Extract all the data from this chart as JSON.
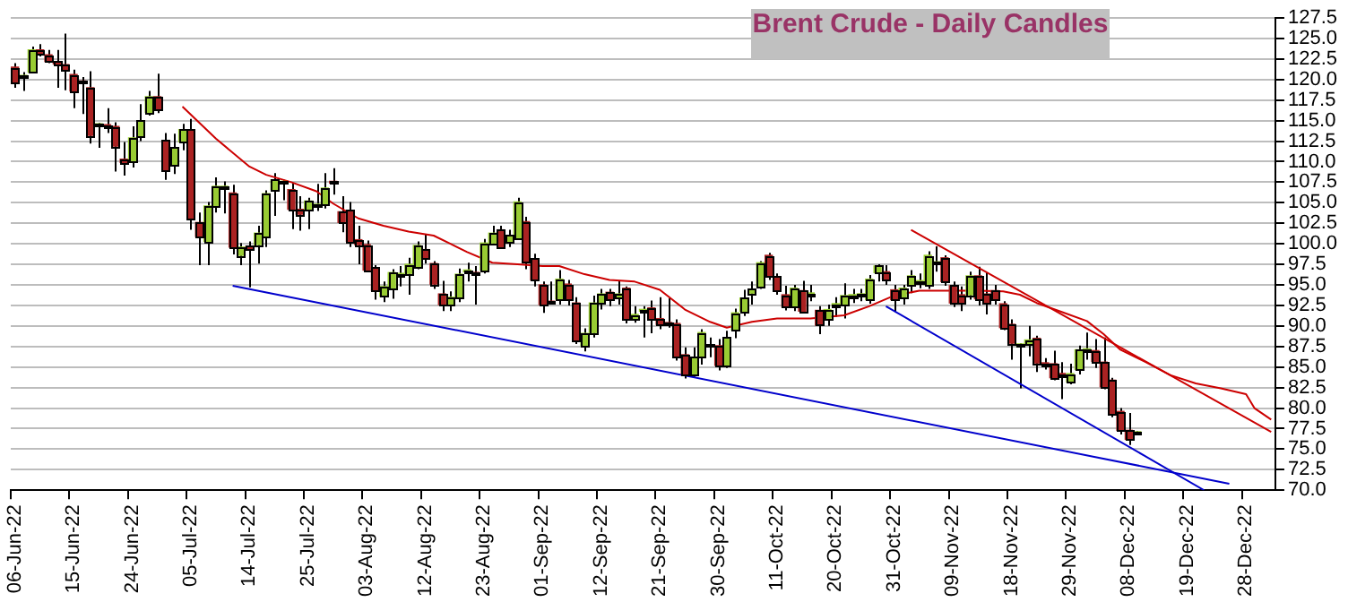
{
  "chart_data": {
    "type": "candlestick",
    "title": "Brent Crude - Daily Candles",
    "categories": [
      "06-Jun-22",
      null,
      null,
      null,
      null,
      null,
      null,
      "15-Jun-22",
      null,
      null,
      null,
      null,
      null,
      null,
      "24-Jun-22",
      null,
      null,
      null,
      null,
      null,
      null,
      "05-Jul-22",
      null,
      null,
      null,
      null,
      null,
      null,
      "14-Jul-22",
      null,
      null,
      null,
      null,
      null,
      null,
      "25-Jul-22",
      null,
      null,
      null,
      null,
      null,
      null,
      "03-Aug-22",
      null,
      null,
      null,
      null,
      null,
      null,
      "12-Aug-22",
      null,
      null,
      null,
      null,
      null,
      null,
      "23-Aug-22",
      null,
      null,
      null,
      null,
      null,
      null,
      "01-Sep-22",
      null,
      null,
      null,
      null,
      null,
      null,
      "12-Sep-22",
      null,
      null,
      null,
      null,
      null,
      null,
      "21-Sep-22",
      null,
      null,
      null,
      null,
      null,
      null,
      "30-Sep-22",
      null,
      null,
      null,
      null,
      null,
      null,
      "11-Oct-22",
      null,
      null,
      null,
      null,
      null,
      null,
      "20-Oct-22",
      null,
      null,
      null,
      null,
      null,
      null,
      "31-Oct-22",
      null,
      null,
      null,
      null,
      null,
      null,
      "09-Nov-22",
      null,
      null,
      null,
      null,
      null,
      null,
      "18-Nov-22",
      null,
      null,
      null,
      null,
      null,
      null,
      "29-Nov-22",
      null,
      null,
      null,
      null,
      null,
      null,
      "08-Dec-22",
      null,
      null,
      null,
      null,
      null,
      null,
      "19-Dec-22",
      null,
      null,
      null,
      null,
      null,
      null,
      "28-Dec-22",
      null,
      null,
      null
    ],
    "ohlc": [
      [
        121.5,
        122.0,
        119.0,
        119.7
      ],
      [
        120.2,
        120.9,
        118.6,
        120.5
      ],
      [
        120.9,
        124.0,
        120.8,
        123.6
      ],
      [
        123.6,
        124.3,
        122.8,
        123.1
      ],
      [
        123.0,
        123.6,
        122.0,
        122.2
      ],
      [
        122.2,
        123.6,
        119.0,
        121.9
      ],
      [
        121.8,
        125.6,
        118.7,
        121.2
      ],
      [
        120.6,
        121.2,
        116.5,
        118.6
      ],
      [
        119.8,
        120.3,
        115.8,
        119.6
      ],
      [
        119.0,
        121.0,
        112.2,
        113.2
      ],
      [
        114.4,
        114.7,
        111.7,
        114.6
      ],
      [
        114.5,
        116.5,
        113.5,
        114.3
      ],
      [
        114.3,
        114.8,
        108.8,
        111.9
      ],
      [
        110.3,
        112.4,
        108.3,
        109.9
      ],
      [
        110.1,
        114.3,
        109.3,
        112.9
      ],
      [
        113.1,
        117.0,
        112.5,
        115.0
      ],
      [
        116.0,
        118.6,
        115.6,
        117.9
      ],
      [
        117.9,
        120.7,
        115.9,
        116.4
      ],
      [
        112.6,
        113.5,
        107.8,
        109.0
      ],
      [
        109.6,
        113.4,
        108.5,
        111.7
      ],
      [
        112.4,
        114.6,
        111.4,
        113.9
      ],
      [
        113.9,
        115.2,
        101.7,
        103.0
      ],
      [
        102.6,
        103.8,
        97.4,
        100.9
      ],
      [
        100.3,
        105.1,
        97.4,
        104.6
      ],
      [
        104.6,
        108.1,
        103.8,
        107.0
      ],
      [
        106.8,
        107.6,
        103.7,
        107.0
      ],
      [
        106.2,
        107.2,
        98.7,
        99.6
      ],
      [
        98.6,
        100.1,
        97.4,
        99.6
      ],
      [
        99.7,
        100.3,
        94.7,
        99.4
      ],
      [
        99.9,
        102.2,
        97.6,
        101.3
      ],
      [
        100.9,
        106.5,
        99.6,
        106.1
      ],
      [
        106.6,
        108.6,
        103.4,
        107.8
      ],
      [
        107.4,
        107.8,
        105.3,
        107.6
      ],
      [
        106.6,
        107.4,
        101.8,
        104.2
      ],
      [
        104.2,
        105.8,
        101.6,
        103.6
      ],
      [
        104.2,
        105.6,
        101.8,
        105.2
      ],
      [
        104.6,
        107.3,
        104.0,
        104.8
      ],
      [
        104.9,
        108.6,
        104.3,
        106.8
      ],
      [
        107.6,
        109.2,
        106.0,
        107.4
      ],
      [
        103.9,
        105.8,
        101.4,
        102.6
      ],
      [
        104.1,
        105.1,
        99.6,
        100.3
      ],
      [
        100.5,
        102.2,
        97.5,
        99.9
      ],
      [
        99.9,
        100.4,
        96.6,
        96.8
      ],
      [
        97.1,
        97.4,
        93.2,
        94.3
      ],
      [
        93.6,
        95.4,
        92.9,
        94.8
      ],
      [
        94.5,
        96.9,
        93.3,
        96.5
      ],
      [
        96.1,
        97.3,
        94.8,
        96.4
      ],
      [
        96.4,
        98.3,
        93.8,
        97.5
      ],
      [
        97.1,
        100.3,
        96.9,
        99.8
      ],
      [
        99.3,
        101.2,
        97.6,
        98.3
      ],
      [
        97.6,
        97.9,
        94.5,
        95.1
      ],
      [
        93.9,
        95.5,
        91.8,
        92.6
      ],
      [
        92.6,
        94.2,
        91.8,
        93.5
      ],
      [
        93.5,
        97.0,
        92.9,
        96.3
      ],
      [
        96.6,
        97.7,
        95.4,
        96.8
      ],
      [
        96.5,
        97.3,
        92.6,
        96.3
      ],
      [
        96.8,
        100.6,
        96.4,
        100.1
      ],
      [
        100.1,
        102.2,
        99.8,
        101.3
      ],
      [
        101.7,
        102.2,
        99.5,
        99.6
      ],
      [
        100.3,
        101.7,
        99.6,
        101.0
      ],
      [
        100.7,
        105.6,
        100.5,
        105.1
      ],
      [
        102.7,
        103.3,
        96.9,
        97.8
      ],
      [
        98.2,
        98.8,
        94.8,
        95.6
      ],
      [
        95.0,
        95.4,
        91.6,
        92.6
      ],
      [
        93.0,
        95.4,
        92.6,
        92.8
      ],
      [
        93.3,
        96.8,
        92.6,
        95.7
      ],
      [
        95.1,
        95.6,
        92.5,
        93.2
      ],
      [
        92.8,
        93.5,
        87.8,
        88.3
      ],
      [
        87.6,
        89.7,
        86.9,
        89.1
      ],
      [
        89.2,
        93.7,
        88.6,
        92.8
      ],
      [
        92.8,
        94.5,
        92.0,
        93.9
      ],
      [
        94.1,
        94.5,
        92.4,
        93.3
      ],
      [
        93.4,
        95.5,
        92.6,
        93.9
      ],
      [
        94.6,
        94.8,
        90.3,
        90.9
      ],
      [
        90.9,
        92.4,
        90.4,
        91.4
      ],
      [
        91.8,
        92.4,
        88.6,
        92.0
      ],
      [
        92.2,
        93.1,
        89.1,
        90.8
      ],
      [
        90.9,
        93.5,
        89.6,
        90.2
      ],
      [
        90.4,
        93.4,
        89.8,
        90.2
      ],
      [
        90.3,
        90.8,
        85.8,
        86.2
      ],
      [
        86.5,
        87.4,
        83.6,
        84.1
      ],
      [
        84.1,
        87.4,
        83.8,
        86.2
      ],
      [
        86.2,
        89.6,
        85.3,
        89.2
      ],
      [
        87.7,
        88.6,
        86.2,
        87.5
      ],
      [
        87.6,
        88.4,
        84.6,
        85.2
      ],
      [
        85.2,
        89.4,
        84.9,
        88.6
      ],
      [
        89.5,
        92.1,
        88.5,
        91.6
      ],
      [
        91.8,
        94.4,
        91.2,
        93.4
      ],
      [
        94.0,
        95.4,
        92.6,
        94.5
      ],
      [
        94.8,
        97.9,
        94.5,
        97.7
      ],
      [
        98.6,
        98.9,
        95.6,
        96.0
      ],
      [
        96.0,
        96.4,
        93.8,
        94.3
      ],
      [
        93.8,
        94.9,
        91.9,
        92.4
      ],
      [
        92.3,
        95.0,
        91.8,
        94.6
      ],
      [
        94.3,
        95.5,
        91.5,
        91.8
      ],
      [
        93.8,
        95.0,
        93.0,
        94.0
      ],
      [
        91.9,
        92.4,
        89.0,
        90.1
      ],
      [
        90.8,
        92.6,
        90.0,
        92.0
      ],
      [
        92.5,
        93.5,
        91.1,
        92.7
      ],
      [
        92.6,
        95.2,
        90.9,
        93.7
      ],
      [
        93.6,
        94.5,
        92.8,
        93.8
      ],
      [
        93.7,
        94.5,
        93.0,
        93.9
      ],
      [
        93.2,
        96.2,
        92.7,
        95.7
      ],
      [
        96.5,
        97.5,
        95.4,
        97.3
      ],
      [
        96.6,
        97.4,
        95.0,
        95.7
      ],
      [
        94.4,
        95.0,
        91.7,
        93.2
      ],
      [
        93.5,
        95.0,
        92.6,
        94.6
      ],
      [
        95.0,
        96.8,
        94.0,
        96.1
      ],
      [
        95.3,
        96.4,
        94.6,
        95.5
      ],
      [
        95.0,
        99.1,
        94.5,
        98.6
      ],
      [
        97.6,
        99.7,
        96.6,
        97.8
      ],
      [
        98.3,
        98.6,
        94.9,
        95.4
      ],
      [
        94.9,
        95.4,
        92.3,
        92.8
      ],
      [
        93.8,
        94.8,
        91.8,
        92.8
      ],
      [
        93.8,
        96.6,
        93.2,
        96.1
      ],
      [
        96.1,
        97.2,
        92.5,
        93.3
      ],
      [
        93.9,
        96.5,
        91.4,
        92.8
      ],
      [
        94.3,
        95.0,
        92.6,
        93.2
      ],
      [
        92.7,
        93.0,
        89.5,
        89.8
      ],
      [
        90.2,
        90.8,
        85.9,
        87.9
      ],
      [
        87.6,
        87.9,
        82.4,
        87.8
      ],
      [
        87.8,
        90.0,
        86.3,
        88.3
      ],
      [
        88.5,
        88.8,
        84.4,
        85.5
      ],
      [
        85.5,
        86.1,
        84.7,
        85.3
      ],
      [
        85.4,
        87.0,
        83.4,
        83.7
      ],
      [
        84.2,
        85.6,
        81.1,
        84.0
      ],
      [
        83.2,
        85.4,
        82.9,
        84.2
      ],
      [
        84.7,
        87.6,
        84.1,
        87.1
      ],
      [
        87.0,
        89.2,
        85.9,
        87.2
      ],
      [
        87.0,
        88.4,
        84.9,
        85.7
      ],
      [
        85.6,
        88.6,
        82.3,
        82.6
      ],
      [
        83.4,
        83.7,
        78.9,
        79.3
      ],
      [
        79.6,
        80.0,
        76.8,
        77.3
      ],
      [
        77.3,
        79.4,
        75.5,
        76.2
      ],
      [
        76.9,
        77.2,
        76.8,
        77.1
      ],
      null,
      null,
      null,
      null,
      null,
      null,
      null,
      null,
      null,
      null,
      null,
      null,
      null,
      null,
      null,
      null
    ],
    "colors": [
      "#aa2222",
      "#99cc33",
      "#99cc33",
      "#aa2222",
      "#aa2222",
      "#aa2222",
      "#aa2222",
      "#aa2222",
      "#aa2222",
      "#aa2222",
      "#99cc33",
      "#aa2222",
      "#aa2222",
      "#aa2222",
      "#99cc33",
      "#99cc33",
      "#99cc33",
      "#aa2222",
      "#aa2222",
      "#99cc33",
      "#99cc33",
      "#aa2222",
      "#aa2222",
      "#99cc33",
      "#99cc33",
      "#99cc33",
      "#aa2222",
      "#99cc33",
      "#aa2222",
      "#99cc33",
      "#99cc33",
      "#99cc33",
      "#99cc33",
      "#aa2222",
      "#aa2222",
      "#99cc33",
      "#99cc33",
      "#99cc33",
      "#aa2222",
      "#aa2222",
      "#aa2222",
      "#aa2222",
      "#aa2222",
      "#aa2222",
      "#99cc33",
      "#99cc33",
      "#99cc33",
      "#99cc33",
      "#99cc33",
      "#aa2222",
      "#aa2222",
      "#aa2222",
      "#99cc33",
      "#99cc33",
      "#99cc33",
      "#aa2222",
      "#99cc33",
      "#99cc33",
      "#aa2222",
      "#99cc33",
      "#99cc33",
      "#aa2222",
      "#aa2222",
      "#aa2222",
      "#aa2222",
      "#99cc33",
      "#aa2222",
      "#aa2222",
      "#99cc33",
      "#99cc33",
      "#99cc33",
      "#aa2222",
      "#99cc33",
      "#aa2222",
      "#99cc33",
      "#99cc33",
      "#aa2222",
      "#aa2222",
      "#aa2222",
      "#aa2222",
      "#aa2222",
      "#99cc33",
      "#99cc33",
      "#aa2222",
      "#aa2222",
      "#99cc33",
      "#99cc33",
      "#99cc33",
      "#99cc33",
      "#99cc33",
      "#aa2222",
      "#aa2222",
      "#aa2222",
      "#99cc33",
      "#aa2222",
      "#99cc33",
      "#aa2222",
      "#99cc33",
      "#99cc33",
      "#99cc33",
      "#99cc33",
      "#99cc33",
      "#99cc33",
      "#99cc33",
      "#aa2222",
      "#aa2222",
      "#99cc33",
      "#99cc33",
      "#99cc33",
      "#99cc33",
      "#99cc33",
      "#aa2222",
      "#aa2222",
      "#aa2222",
      "#99cc33",
      "#aa2222",
      "#aa2222",
      "#aa2222",
      "#aa2222",
      "#aa2222",
      "#99cc33",
      "#99cc33",
      "#aa2222",
      "#aa2222",
      "#aa2222",
      "#aa2222",
      "#99cc33",
      "#99cc33",
      "#99cc33",
      "#aa2222",
      "#aa2222",
      "#aa2222",
      "#aa2222",
      "#aa2222",
      "#99cc33",
      null,
      null,
      null,
      null,
      null,
      null,
      null,
      null,
      null,
      null,
      null,
      null,
      null,
      null,
      null,
      null
    ],
    "series": [
      {
        "type": "line",
        "color": "#cc0000",
        "values": [
          null,
          null,
          null,
          null,
          null,
          null,
          null,
          null,
          null,
          null,
          null,
          null,
          null,
          null,
          null,
          null,
          null,
          null,
          null,
          null,
          116.7,
          null,
          null,
          null,
          112.8,
          null,
          null,
          null,
          109.4,
          null,
          108.4,
          null,
          null,
          107.5,
          null,
          null,
          106.4,
          null,
          104.9,
          null,
          null,
          103.1,
          null,
          null,
          102.2,
          null,
          null,
          101.5,
          null,
          null,
          101.0,
          null,
          100.0,
          null,
          99.0,
          null,
          null,
          97.7,
          null,
          null,
          97.5,
          null,
          null,
          97.3,
          null,
          97.3,
          null,
          null,
          96.3,
          null,
          null,
          95.6,
          null,
          null,
          95.4,
          null,
          null,
          94.4,
          null,
          null,
          92.0,
          null,
          null,
          90.5,
          null,
          89.8,
          null,
          null,
          90.5,
          null,
          null,
          90.9,
          null,
          null,
          null,
          90.9,
          null,
          null,
          null,
          91.3,
          null,
          null,
          92.4,
          null,
          null,
          93.7,
          null,
          null,
          94.3,
          null,
          null,
          null,
          94.3,
          null,
          null,
          94.3,
          null,
          null,
          94.2,
          null,
          93.8,
          null,
          92.8,
          null,
          null,
          91.7,
          null,
          null,
          90.6,
          null,
          89.0,
          null,
          87.1,
          null,
          null,
          85.6,
          null,
          null,
          84.0,
          null,
          null,
          83.0,
          null,
          null,
          82.4,
          null,
          null,
          81.7,
          80.0,
          null,
          78.6
        ]
      },
      {
        "type": "line",
        "color": "#cc0000",
        "values": [
          null,
          null,
          null,
          null,
          null,
          null,
          null,
          null,
          null,
          null,
          null,
          null,
          null,
          null,
          null,
          null,
          null,
          null,
          null,
          null,
          null,
          null,
          null,
          null,
          null,
          null,
          null,
          null,
          null,
          null,
          null,
          null,
          null,
          null,
          null,
          null,
          null,
          null,
          null,
          null,
          null,
          null,
          null,
          null,
          null,
          null,
          null,
          null,
          null,
          null,
          null,
          null,
          null,
          null,
          null,
          null,
          null,
          null,
          null,
          null,
          null,
          null,
          null,
          null,
          null,
          null,
          null,
          null,
          null,
          null,
          null,
          null,
          null,
          null,
          null,
          null,
          null,
          null,
          null,
          null,
          null,
          null,
          null,
          null,
          null,
          null,
          null,
          null,
          null,
          null,
          null,
          null,
          null,
          null,
          null,
          null,
          null,
          null,
          null,
          null,
          null,
          null,
          null,
          null,
          null,
          null,
          null,
          101.7,
          null,
          null,
          null,
          null,
          null,
          null,
          null,
          null,
          null,
          null,
          null,
          null,
          null,
          null,
          null,
          null,
          null,
          null,
          null,
          null,
          null,
          null,
          null,
          null,
          null,
          null,
          null,
          null,
          null,
          null,
          null,
          null,
          null,
          null,
          null,
          null,
          null,
          null,
          null,
          null,
          null,
          null,
          77.1
        ]
      },
      {
        "type": "line",
        "color": "#0000cc",
        "values": [
          null,
          null,
          null,
          null,
          null,
          null,
          null,
          null,
          null,
          null,
          null,
          null,
          null,
          null,
          null,
          null,
          null,
          null,
          null,
          null,
          null,
          null,
          null,
          null,
          null,
          null,
          94.9,
          null,
          null,
          null,
          null,
          null,
          null,
          null,
          null,
          null,
          null,
          null,
          null,
          null,
          null,
          null,
          null,
          null,
          null,
          null,
          null,
          null,
          null,
          null,
          null,
          null,
          null,
          null,
          null,
          null,
          null,
          null,
          null,
          null,
          null,
          null,
          null,
          null,
          null,
          null,
          null,
          null,
          null,
          null,
          null,
          null,
          null,
          null,
          null,
          null,
          null,
          null,
          null,
          null,
          null,
          null,
          null,
          null,
          null,
          null,
          null,
          null,
          null,
          null,
          null,
          null,
          null,
          null,
          null,
          null,
          null,
          null,
          null,
          null,
          null,
          null,
          null,
          null,
          null,
          null,
          null,
          null,
          null,
          null,
          null,
          null,
          null,
          null,
          null,
          null,
          null,
          null,
          null,
          null,
          null,
          null,
          null,
          null,
          null,
          null,
          null,
          null,
          null,
          null,
          null,
          null,
          null,
          null,
          null,
          null,
          null,
          null,
          null,
          null,
          null,
          null,
          null,
          null,
          null,
          70.8,
          null,
          null,
          null,
          null,
          null
        ]
      },
      {
        "type": "line",
        "color": "#0000cc",
        "values": [
          null,
          null,
          null,
          null,
          null,
          null,
          null,
          null,
          null,
          null,
          null,
          null,
          null,
          null,
          null,
          null,
          null,
          null,
          null,
          null,
          null,
          null,
          null,
          null,
          null,
          null,
          null,
          null,
          null,
          null,
          null,
          null,
          null,
          null,
          null,
          null,
          null,
          null,
          null,
          null,
          null,
          null,
          null,
          null,
          null,
          null,
          null,
          null,
          null,
          null,
          null,
          null,
          null,
          null,
          null,
          null,
          null,
          null,
          null,
          null,
          null,
          null,
          null,
          null,
          null,
          null,
          null,
          null,
          null,
          null,
          null,
          null,
          null,
          null,
          null,
          null,
          null,
          null,
          null,
          null,
          null,
          null,
          null,
          null,
          null,
          null,
          null,
          null,
          null,
          null,
          null,
          null,
          null,
          null,
          null,
          null,
          null,
          null,
          null,
          null,
          null,
          null,
          null,
          null,
          92.4,
          null,
          null,
          null,
          null,
          null,
          null,
          null,
          null,
          null,
          null,
          null,
          null,
          null,
          null,
          null,
          null,
          null,
          null,
          null,
          null,
          null,
          null,
          null,
          null,
          null,
          null,
          null,
          null,
          null,
          null,
          null,
          null,
          null,
          null,
          null,
          null,
          null,
          70.0,
          null,
          null,
          null,
          null,
          null,
          null,
          null,
          null
        ]
      }
    ],
    "ylim": [
      70,
      127.5
    ],
    "yticks": [
      {
        "value": 70,
        "label": "70.0"
      },
      72.5,
      {
        "value": 75,
        "label": "75.0"
      },
      77.5,
      {
        "value": 80,
        "label": "80.0"
      },
      82.5,
      {
        "value": 85,
        "label": "85.0"
      },
      87.5,
      {
        "value": 90,
        "label": "90.0"
      },
      92.5,
      {
        "value": 95,
        "label": "95.0"
      },
      97.5,
      {
        "value": 100,
        "label": "100.0"
      },
      102.5,
      {
        "value": 105,
        "label": "105.0"
      },
      107.5,
      {
        "value": 110,
        "label": "110.0"
      },
      112.5,
      {
        "value": 115,
        "label": "115.0"
      },
      117.5,
      {
        "value": 120,
        "label": "120.0"
      },
      122.5,
      {
        "value": 125,
        "label": "125.0"
      },
      127.5
    ],
    "grid": "y"
  }
}
